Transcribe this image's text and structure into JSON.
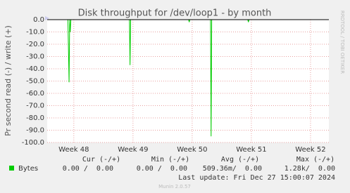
{
  "chart_data": {
    "type": "line",
    "title": "Disk throughput for /dev/loop1 - by month",
    "y_label": "Pr second read (-) / write (+)",
    "side_label": "RRDTOOL / TOBI OETIKER",
    "x": [
      47.55,
      47.9,
      47.92,
      47.93,
      47.94,
      47.95,
      48.94,
      48.95,
      48.96,
      49.94,
      49.95,
      49.96,
      50.31,
      50.32,
      50.33,
      50.94,
      50.95,
      50.96,
      52.29
    ],
    "series": [
      {
        "name": "Bytes",
        "color": "#00cc00",
        "values": [
          0,
          0,
          -51,
          0,
          -10,
          0,
          0,
          -37,
          0,
          0,
          -2,
          0,
          0,
          -95,
          0,
          0,
          -2,
          0,
          0
        ]
      }
    ],
    "xlim": [
      47.55,
      52.31
    ],
    "xticks": [
      {
        "value": 48,
        "label": "Week 48"
      },
      {
        "value": 49,
        "label": "Week 49"
      },
      {
        "value": 50,
        "label": "Week 50"
      },
      {
        "value": 51,
        "label": "Week 51"
      },
      {
        "value": 52,
        "label": "Week 52"
      }
    ],
    "ylim": [
      -100,
      0
    ],
    "yticks": [
      {
        "value": 0,
        "label": "0.0"
      },
      {
        "value": -10,
        "label": "-10.0"
      },
      {
        "value": -20,
        "label": "-20.0"
      },
      {
        "value": -30,
        "label": "-30.0"
      },
      {
        "value": -40,
        "label": "-40.0"
      },
      {
        "value": -50,
        "label": "-50.0"
      },
      {
        "value": -60,
        "label": "-60.0"
      },
      {
        "value": -70,
        "label": "-70.0"
      },
      {
        "value": -80,
        "label": "-80.0"
      },
      {
        "value": -90,
        "label": "-90.0"
      },
      {
        "value": -100,
        "label": "-100.0"
      }
    ],
    "grid": true,
    "stats": {
      "headers": [
        "Cur (-/+)",
        "Min (-/+)",
        "Avg (-/+)",
        "Max (-/+)"
      ],
      "values": [
        "0.00 /  0.00",
        "0.00 /  0.00",
        "509.36m/  0.00",
        "1.28k/  0.00"
      ]
    },
    "last_update": "Last update: Fri Dec 27 15:00:07 2024",
    "footer": "Munin 2.0.57"
  }
}
